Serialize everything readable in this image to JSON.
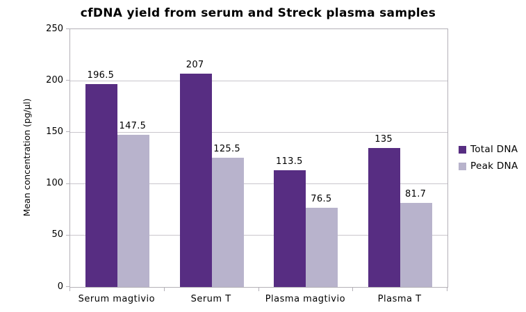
{
  "chart_data": {
    "type": "bar",
    "title": "cfDNA yield from serum and Streck plasma samples",
    "ylabel": "Mean concentration (pg/µl)",
    "xlabel": "",
    "categories": [
      "Serum magtivio",
      "Serum T",
      "Plasma magtivio",
      "Plasma T"
    ],
    "series": [
      {
        "name": "Total DNA",
        "color": "#572d82",
        "values": [
          196.5,
          207,
          113.5,
          135
        ]
      },
      {
        "name": "Peak DNA",
        "color": "#b8b3cc",
        "values": [
          147.5,
          125.5,
          76.5,
          81.7
        ]
      }
    ],
    "ylim": [
      0,
      250
    ],
    "y_ticks": [
      0,
      50,
      100,
      150,
      200,
      250
    ],
    "grid": true,
    "legend_position": "right",
    "value_labels_shown": true
  },
  "colors": {
    "background": "#ffffff",
    "axis_line": "#b3b0b7",
    "gridline": "#c9c6cc",
    "text": "#000000",
    "total_dna": "#572d82",
    "peak_dna": "#b8b3cc"
  }
}
